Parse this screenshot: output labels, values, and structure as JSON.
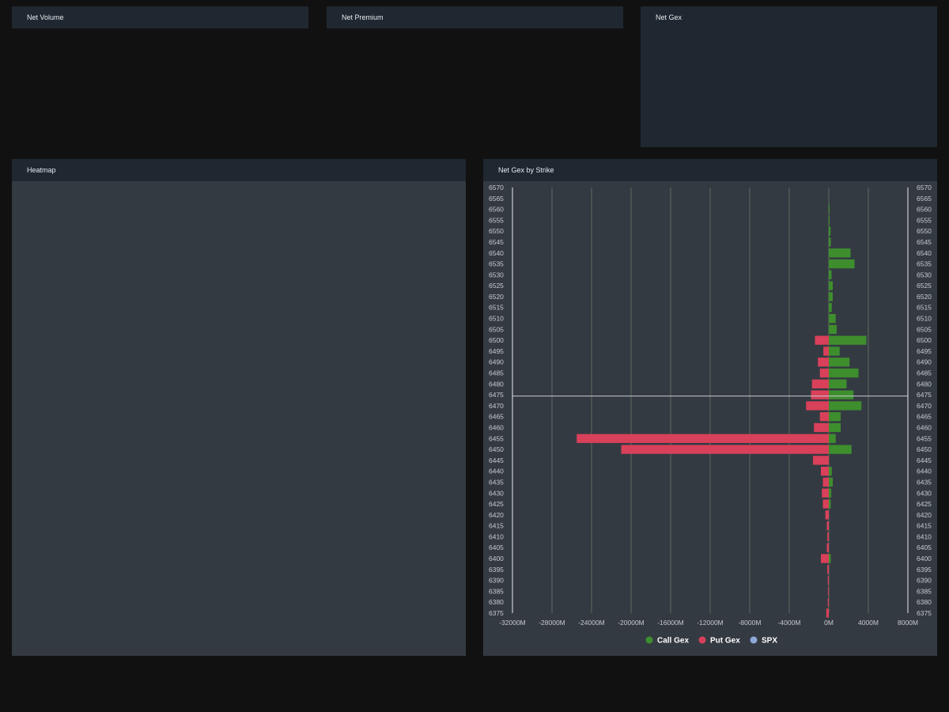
{
  "panels": {
    "net_volume": {
      "title": "Net Volume"
    },
    "net_premium": {
      "title": "Net Premium"
    },
    "net_gex": {
      "title": "Net Gex"
    },
    "heatmap": {
      "title": "Heatmap"
    },
    "strike": {
      "title": "Net Gex by Strike"
    }
  },
  "colors": {
    "call": "#3e8e2e",
    "put": "#d9405a",
    "spx": "#8fa7d6",
    "grid": "#5c6a5c",
    "spot_line": "#c8ccd4"
  },
  "chart_data": {
    "type": "bar",
    "orientation": "horizontal",
    "stacked": false,
    "x_unit": "M",
    "xlim": [
      -32000,
      8000
    ],
    "x_ticks": [
      -32000,
      -28000,
      -24000,
      -20000,
      -16000,
      -12000,
      -8000,
      -4000,
      0,
      4000,
      8000
    ],
    "x_tick_labels": [
      "-32000M",
      "-28000M",
      "-24000M",
      "-20000M",
      "-16000M",
      "-12000M",
      "-8000M",
      "-4000M",
      "0M",
      "4000M",
      "8000M"
    ],
    "left_strike_labels": [
      6570,
      6565,
      6560,
      6555,
      6550,
      6545,
      6540,
      6535,
      6530,
      6525,
      6520,
      6515,
      6510,
      6505,
      6500,
      6495,
      6490,
      6485,
      6480,
      6475,
      6470,
      6465,
      6460,
      6455,
      6450,
      6445,
      6440,
      6435,
      6430,
      6425,
      6420,
      6415,
      6410,
      6405,
      6400,
      6395,
      6390,
      6385,
      6380,
      6375
    ],
    "right_strike_labels": [
      6570,
      6565,
      6560,
      6555,
      6550,
      6545,
      6540,
      6535,
      6530,
      6525,
      6520,
      6515,
      6510,
      6505,
      6500,
      6495,
      6490,
      6485,
      6480,
      6475,
      6470,
      6465,
      6460,
      6455,
      6450,
      6445,
      6440,
      6435,
      6430,
      6425,
      6420,
      6415,
      6410,
      6405,
      6400,
      6395,
      6390,
      6385,
      6380,
      6375
    ],
    "rows": [
      "6570/6570",
      "6565/6565",
      "6560/6560",
      "6555/6555",
      "6550/6550",
      "6545/6545",
      "6540/6540",
      "6535/6535",
      "6530/6530",
      "6525/6525",
      "6520/6520",
      "6515/6515",
      "6510/6510",
      "6505/6505",
      "6500/6500",
      "6495/6495",
      "6490/6490",
      "6485/6485",
      "6480/6480",
      "6475/6475",
      "6470/6470",
      "6465/6465",
      "6460/6460",
      "6455/6455",
      "6450/6450",
      "6445/6445",
      "6440/6440",
      "6435/6435",
      "6430/6430",
      "6425/6425",
      "6420/6420",
      "6415/6415",
      "6410/6410",
      "6405/6405",
      "6400/6400",
      "6395/6395",
      "6390/6390",
      "6385/6385",
      "6380/6380",
      "6375/6375"
    ],
    "series": [
      {
        "name": "Call Gex",
        "values": [
          0,
          0,
          40,
          40,
          180,
          200,
          2200,
          2600,
          280,
          400,
          400,
          300,
          700,
          800,
          3800,
          1100,
          2100,
          3000,
          1800,
          2500,
          3300,
          1200,
          1200,
          700,
          2300,
          0,
          300,
          400,
          250,
          200,
          0,
          0,
          0,
          0,
          200,
          0,
          0,
          0,
          0,
          0
        ]
      },
      {
        "name": "Put Gex",
        "values": [
          0,
          0,
          0,
          0,
          0,
          0,
          0,
          0,
          0,
          0,
          0,
          0,
          0,
          0,
          -1400,
          -550,
          -1100,
          -900,
          -1700,
          -1800,
          -2300,
          -900,
          -1500,
          -25500,
          -21000,
          -1600,
          -800,
          -600,
          -700,
          -600,
          -350,
          -200,
          -150,
          -200,
          -800,
          -150,
          -100,
          -80,
          -100,
          -250
        ]
      }
    ],
    "legend": [
      {
        "name": "Call Gex",
        "color": "#3e8e2e"
      },
      {
        "name": "Put Gex",
        "color": "#d9405a"
      },
      {
        "name": "SPX",
        "color": "#8fa7d6"
      }
    ],
    "spx_level": 6475,
    "legend_position": "bottom-center",
    "grid": true
  }
}
